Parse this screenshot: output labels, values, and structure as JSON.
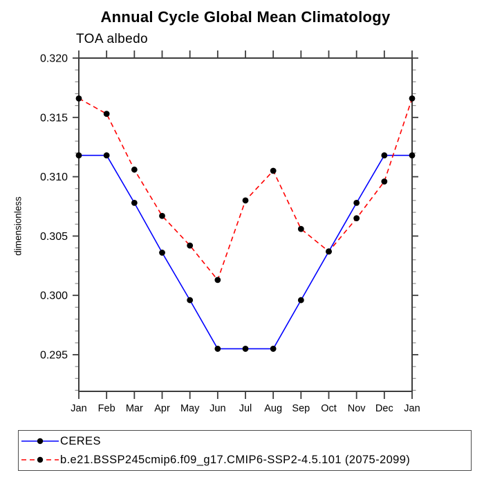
{
  "chart_data": {
    "type": "line",
    "title": "Annual Cycle Global Mean Climatology",
    "subtitle": "TOA albedo",
    "ylabel": "dimensionless",
    "xlabel": "",
    "categories": [
      "Jan",
      "Feb",
      "Mar",
      "Apr",
      "May",
      "Jun",
      "Jul",
      "Aug",
      "Sep",
      "Oct",
      "Nov",
      "Dec",
      "Jan"
    ],
    "ylim": [
      0.2919,
      0.32
    ],
    "yticks_major": [
      0.295,
      0.3,
      0.305,
      0.31,
      0.315,
      0.32
    ],
    "ytick_minor_step": 0.001,
    "ytick_minor_range": [
      0.292,
      0.319
    ],
    "grid": false,
    "legend_position": "bottom-left-box",
    "axis_color": "#3c3c3c",
    "minor_tick_color": "#8a8a8a",
    "marker": {
      "shape": "filled-circle",
      "color": "#000000",
      "radius": 4.4
    },
    "series": [
      {
        "name": "CERES",
        "color": "#0000ff",
        "style": "solid",
        "values": [
          0.3118,
          0.3118,
          0.3078,
          0.3036,
          0.2996,
          0.2955,
          0.2955,
          0.2955,
          0.2996,
          0.3037,
          0.3078,
          0.3118,
          0.3118
        ]
      },
      {
        "name": "b.e21.BSSP245cmip6.f09_g17.CMIP6-SSP2-4.5.101 (2075-2099)",
        "color": "#ff0000",
        "style": "dashed",
        "values": [
          0.3166,
          0.3153,
          0.3106,
          0.3067,
          0.3042,
          0.3013,
          0.308,
          0.3105,
          0.3056,
          0.3037,
          0.3065,
          0.3096,
          0.3166
        ]
      }
    ]
  }
}
